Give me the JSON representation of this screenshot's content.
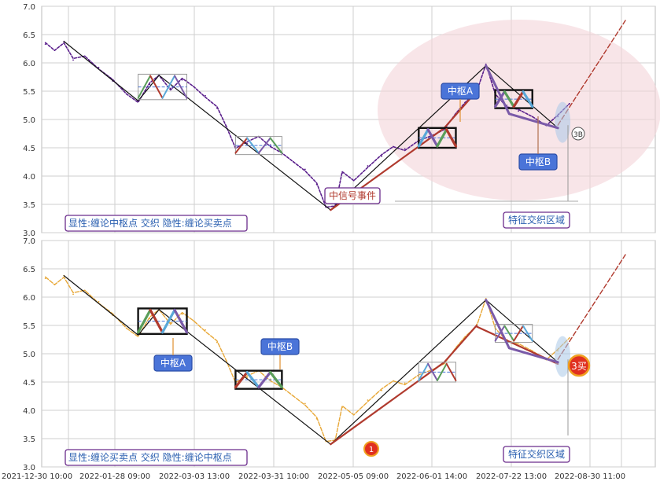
{
  "chart_data": [
    {
      "type": "line",
      "panel": "top",
      "ylim": [
        3.0,
        7.0
      ],
      "yticks": [
        "7.0",
        "6.5",
        "6.0",
        "5.5",
        "5.0",
        "4.5",
        "4.0",
        "3.5",
        "3.0"
      ],
      "grid": true,
      "legend_label": "显性:缠论中枢点 交织 隐性:缠论买卖点",
      "zone_label": "特征交织区域",
      "signal_label": "中信号事件",
      "annotations": [
        {
          "name": "pivot-a-label",
          "text": "中枢A"
        },
        {
          "name": "pivot-b-label",
          "text": "中枢B"
        },
        {
          "name": "buy-point-3b",
          "text": "3B"
        }
      ],
      "price_color": "#5a1f8c",
      "series": [
        {
          "values": [
            {
              "x": "2022-01-01",
              "y": 6.33
            },
            {
              "x": "2022-01-05",
              "y": 6.22
            },
            {
              "x": "2022-01-09",
              "y": 6.38
            },
            {
              "x": "2022-01-13",
              "y": 6.05
            },
            {
              "x": "2022-01-18",
              "y": 6.12
            },
            {
              "x": "2022-01-24",
              "y": 5.92
            },
            {
              "x": "2022-01-30",
              "y": 5.68
            },
            {
              "x": "2022-02-05",
              "y": 5.45
            },
            {
              "x": "2022-02-10",
              "y": 5.33
            },
            {
              "x": "2022-02-15",
              "y": 5.62
            },
            {
              "x": "2022-02-19",
              "y": 5.78
            },
            {
              "x": "2022-02-24",
              "y": 5.55
            },
            {
              "x": "2022-03-01",
              "y": 5.7
            },
            {
              "x": "2022-03-06",
              "y": 5.58
            },
            {
              "x": "2022-03-11",
              "y": 5.42
            },
            {
              "x": "2022-03-16",
              "y": 5.2
            },
            {
              "x": "2022-03-20",
              "y": 4.88
            },
            {
              "x": "2022-03-24",
              "y": 4.52
            },
            {
              "x": "2022-03-29",
              "y": 4.58
            },
            {
              "x": "2022-04-03",
              "y": 4.7
            },
            {
              "x": "2022-04-08",
              "y": 4.55
            },
            {
              "x": "2022-04-13",
              "y": 4.38
            },
            {
              "x": "2022-04-18",
              "y": 4.25
            },
            {
              "x": "2022-04-23",
              "y": 4.12
            },
            {
              "x": "2022-04-28",
              "y": 3.85
            },
            {
              "x": "2022-05-02",
              "y": 3.45
            },
            {
              "x": "2022-05-06",
              "y": 3.5
            },
            {
              "x": "2022-05-09",
              "y": 4.05
            },
            {
              "x": "2022-05-14",
              "y": 3.92
            },
            {
              "x": "2022-05-20",
              "y": 4.18
            },
            {
              "x": "2022-05-26",
              "y": 4.35
            },
            {
              "x": "2022-05-31",
              "y": 4.52
            },
            {
              "x": "2022-06-05",
              "y": 4.48
            },
            {
              "x": "2022-06-11",
              "y": 4.6
            },
            {
              "x": "2022-06-17",
              "y": 4.72
            },
            {
              "x": "2022-06-22",
              "y": 4.85
            },
            {
              "x": "2022-06-27",
              "y": 5.08
            },
            {
              "x": "2022-07-01",
              "y": 5.3
            },
            {
              "x": "2022-07-06",
              "y": 5.52
            },
            {
              "x": "2022-07-10",
              "y": 5.95
            },
            {
              "x": "2022-07-14",
              "y": 5.45
            },
            {
              "x": "2022-07-19",
              "y": 5.25
            },
            {
              "x": "2022-07-24",
              "y": 5.15
            },
            {
              "x": "2022-07-30",
              "y": 5.05
            },
            {
              "x": "2022-08-05",
              "y": 4.92
            },
            {
              "x": "2022-08-10",
              "y": 5.05
            },
            {
              "x": "2022-08-15",
              "y": 5.28
            }
          ]
        }
      ]
    },
    {
      "type": "line",
      "panel": "bottom",
      "ylim": [
        3.0,
        7.0
      ],
      "yticks": [
        "7.0",
        "6.5",
        "6.0",
        "5.5",
        "5.0",
        "4.5",
        "4.0",
        "3.5",
        "3.0"
      ],
      "grid": true,
      "legend_label": "显性:缠论买卖点 交织 隐性:缠论中枢点",
      "zone_label": "特征交织区域",
      "annotations": [
        {
          "name": "pivot-a-label",
          "text": "中枢A"
        },
        {
          "name": "pivot-b-label",
          "text": "中枢B"
        },
        {
          "name": "buy-point-1",
          "text": "1"
        },
        {
          "name": "buy-point-3",
          "text": "3买"
        }
      ],
      "price_color": "#e8a838",
      "series": [
        {
          "values": [
            {
              "x": "2022-01-01",
              "y": 6.33
            },
            {
              "x": "2022-01-05",
              "y": 6.22
            },
            {
              "x": "2022-01-09",
              "y": 6.38
            },
            {
              "x": "2022-01-13",
              "y": 6.05
            },
            {
              "x": "2022-01-18",
              "y": 6.12
            },
            {
              "x": "2022-01-24",
              "y": 5.92
            },
            {
              "x": "2022-01-30",
              "y": 5.68
            },
            {
              "x": "2022-02-05",
              "y": 5.45
            },
            {
              "x": "2022-02-10",
              "y": 5.33
            },
            {
              "x": "2022-02-15",
              "y": 5.62
            },
            {
              "x": "2022-02-19",
              "y": 5.78
            },
            {
              "x": "2022-02-24",
              "y": 5.55
            },
            {
              "x": "2022-03-01",
              "y": 5.7
            },
            {
              "x": "2022-03-06",
              "y": 5.58
            },
            {
              "x": "2022-03-11",
              "y": 5.42
            },
            {
              "x": "2022-03-16",
              "y": 5.2
            },
            {
              "x": "2022-03-20",
              "y": 4.88
            },
            {
              "x": "2022-03-24",
              "y": 4.52
            },
            {
              "x": "2022-03-29",
              "y": 4.58
            },
            {
              "x": "2022-04-03",
              "y": 4.7
            },
            {
              "x": "2022-04-08",
              "y": 4.55
            },
            {
              "x": "2022-04-13",
              "y": 4.38
            },
            {
              "x": "2022-04-18",
              "y": 4.25
            },
            {
              "x": "2022-04-23",
              "y": 4.12
            },
            {
              "x": "2022-04-28",
              "y": 3.85
            },
            {
              "x": "2022-05-02",
              "y": 3.45
            },
            {
              "x": "2022-05-06",
              "y": 3.5
            },
            {
              "x": "2022-05-09",
              "y": 4.05
            },
            {
              "x": "2022-05-14",
              "y": 3.92
            },
            {
              "x": "2022-05-20",
              "y": 4.18
            },
            {
              "x": "2022-05-26",
              "y": 4.35
            },
            {
              "x": "2022-05-31",
              "y": 4.52
            },
            {
              "x": "2022-06-05",
              "y": 4.48
            },
            {
              "x": "2022-06-11",
              "y": 4.6
            },
            {
              "x": "2022-06-17",
              "y": 4.72
            },
            {
              "x": "2022-06-22",
              "y": 4.85
            },
            {
              "x": "2022-06-27",
              "y": 5.08
            },
            {
              "x": "2022-07-01",
              "y": 5.3
            },
            {
              "x": "2022-07-06",
              "y": 5.52
            },
            {
              "x": "2022-07-10",
              "y": 5.95
            },
            {
              "x": "2022-07-14",
              "y": 5.45
            },
            {
              "x": "2022-07-19",
              "y": 5.25
            },
            {
              "x": "2022-07-24",
              "y": 5.15
            },
            {
              "x": "2022-07-30",
              "y": 5.05
            },
            {
              "x": "2022-08-05",
              "y": 4.92
            },
            {
              "x": "2022-08-10",
              "y": 5.05
            },
            {
              "x": "2022-08-15",
              "y": 5.28
            }
          ]
        }
      ]
    }
  ],
  "xaxis": {
    "ticks": [
      "2021-12-30 10:00",
      "2022-01-28 09:00",
      "2022-03-03 13:00",
      "2022-03-31 10:00",
      "2022-05-05 09:00",
      "2022-06-01 14:00",
      "2022-07-22 13:00",
      "2022-08-30 11:00"
    ]
  },
  "colors": {
    "grid": "#cfcfcf",
    "callout_bg": "#4a74d8",
    "callout_text": "#ffffff",
    "label_border": "#6b2c8c",
    "label_text": "#2a5fb0",
    "zone_text": "#2a5fb0",
    "signal_text": "#b03a2e",
    "highlight": "#f3d3d8",
    "bi_black": "#111111",
    "bi_red": "#b03a2e",
    "bi_blue": "#5aa8d8",
    "bi_green": "#5a9e5a",
    "bi_purple": "#7a5aa8"
  }
}
